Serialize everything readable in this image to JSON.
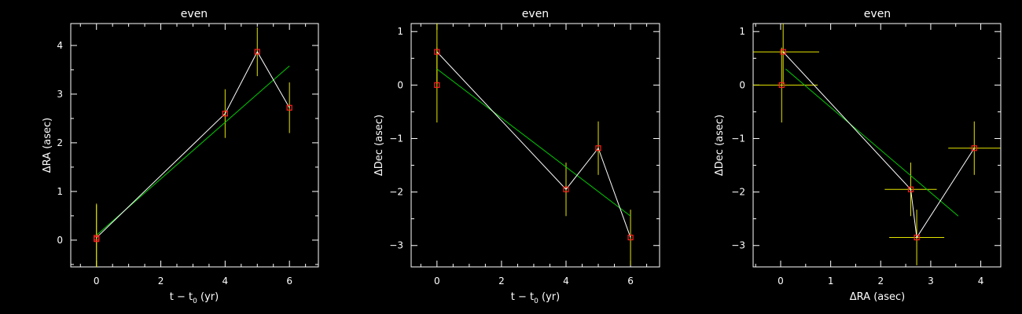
{
  "colors": {
    "background": "#000000",
    "axes": "#ffffff",
    "connecting_line": "#ffffff",
    "fit_line": "#00cc00",
    "error_bar": "#e6e600",
    "marker": "#ff2020"
  },
  "chart_data": [
    {
      "type": "scatter",
      "title": "even",
      "xlabel": {
        "prefix": "t − t",
        "subscript": "0",
        "suffix": " (yr)"
      },
      "ylabel": "ΔRA (asec)",
      "xlim": [
        -0.8,
        6.9
      ],
      "ylim": [
        -0.55,
        4.45
      ],
      "xticks": [
        0,
        2,
        4,
        6
      ],
      "yticks": [
        0,
        1,
        2,
        3,
        4
      ],
      "xticks_minor": [
        -0.5,
        0.5,
        1,
        1.5,
        2.5,
        3,
        3.5,
        4.5,
        5,
        5.5,
        6.5
      ],
      "yticks_minor": [
        -0.5,
        0.5,
        1.5,
        2.5,
        3.5
      ],
      "grid": false,
      "points": [
        {
          "x": 0,
          "y": 0.02,
          "yerr": 0.7
        },
        {
          "x": 0,
          "y": 0.05,
          "yerr": 0.7
        },
        {
          "x": 4,
          "y": 2.6,
          "yerr": 0.5
        },
        {
          "x": 5,
          "y": 3.87,
          "yerr": 0.5
        },
        {
          "x": 6,
          "y": 2.72,
          "yerr": 0.52
        }
      ],
      "connecting_line": [
        [
          0,
          0.05
        ],
        [
          4,
          2.6
        ],
        [
          5,
          3.87
        ],
        [
          6,
          2.72
        ]
      ],
      "fit_line": [
        [
          0,
          0.1
        ],
        [
          6,
          3.58
        ]
      ]
    },
    {
      "type": "scatter",
      "title": "even",
      "xlabel": {
        "prefix": "t − t",
        "subscript": "0",
        "suffix": " (yr)"
      },
      "ylabel": "ΔDec (asec)",
      "xlim": [
        -0.8,
        6.9
      ],
      "ylim": [
        -3.4,
        1.15
      ],
      "xticks": [
        0,
        2,
        4,
        6
      ],
      "yticks": [
        -3,
        -2,
        -1,
        0,
        1
      ],
      "xticks_minor": [
        -0.5,
        0.5,
        1,
        1.5,
        2.5,
        3,
        3.5,
        4.5,
        5,
        5.5,
        6.5
      ],
      "yticks_minor": [
        -2.5,
        -1.5,
        -0.5,
        0.5
      ],
      "grid": false,
      "points": [
        {
          "x": 0,
          "y": 0.62,
          "yerr": 0.6
        },
        {
          "x": 0,
          "y": 0.0,
          "yerr": 0.7
        },
        {
          "x": 4,
          "y": -1.95,
          "yerr": 0.5
        },
        {
          "x": 5,
          "y": -1.18,
          "yerr": 0.5
        },
        {
          "x": 6,
          "y": -2.85,
          "yerr": 0.52
        }
      ],
      "connecting_line": [
        [
          0,
          0.62
        ],
        [
          4,
          -1.95
        ],
        [
          5,
          -1.18
        ],
        [
          6,
          -2.85
        ]
      ],
      "fit_line": [
        [
          0,
          0.3
        ],
        [
          6,
          -2.45
        ]
      ]
    },
    {
      "type": "scatter",
      "title": "even",
      "xlabel": {
        "prefix": "ΔRA (asec)",
        "subscript": "",
        "suffix": ""
      },
      "ylabel": "ΔDec (asec)",
      "xlim": [
        -0.55,
        4.4
      ],
      "ylim": [
        -3.4,
        1.15
      ],
      "xticks": [
        0,
        1,
        2,
        3,
        4
      ],
      "yticks": [
        -3,
        -2,
        -1,
        0,
        1
      ],
      "xticks_minor": [
        -0.5,
        0.5,
        1.5,
        2.5,
        3.5
      ],
      "yticks_minor": [
        -2.5,
        -1.5,
        -0.5,
        0.5
      ],
      "grid": false,
      "points": [
        {
          "x": 0.05,
          "y": 0.62,
          "xerr": 0.72,
          "yerr": 0.6
        },
        {
          "x": 0.02,
          "y": 0.0,
          "xerr": 0.72,
          "yerr": 0.7
        },
        {
          "x": 2.6,
          "y": -1.95,
          "xerr": 0.52,
          "yerr": 0.5
        },
        {
          "x": 3.87,
          "y": -1.18,
          "xerr": 0.52,
          "yerr": 0.5
        },
        {
          "x": 2.72,
          "y": -2.85,
          "xerr": 0.55,
          "yerr": 0.52
        }
      ],
      "connecting_line": [
        [
          0.05,
          0.62
        ],
        [
          2.6,
          -1.95
        ],
        [
          2.72,
          -2.85
        ],
        [
          3.87,
          -1.18
        ]
      ],
      "fit_line": [
        [
          0.1,
          0.3
        ],
        [
          3.55,
          -2.45
        ]
      ]
    }
  ]
}
